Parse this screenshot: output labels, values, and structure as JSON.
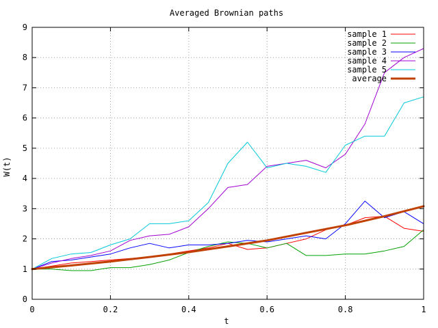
{
  "chart_data": {
    "type": "line",
    "title": "Averaged Brownian paths",
    "xlabel": "t",
    "ylabel": "W(t)",
    "xlim": [
      0,
      1
    ],
    "ylim": [
      0,
      9
    ],
    "x_ticks": [
      0,
      0.2,
      0.4,
      0.6,
      0.8,
      1
    ],
    "x_tick_labels": [
      "0",
      "0.2",
      "0.4",
      "0.6",
      "0.8",
      "1"
    ],
    "y_ticks": [
      0,
      1,
      2,
      3,
      4,
      5,
      6,
      7,
      8,
      9
    ],
    "y_tick_labels": [
      "0",
      "1",
      "2",
      "3",
      "4",
      "5",
      "6",
      "7",
      "8",
      "9"
    ],
    "grid": true,
    "legend_position": "top-right",
    "series": [
      {
        "name": "sample 1",
        "color": "#ff0000",
        "width": 1,
        "x": [
          0,
          0.05,
          0.1,
          0.15,
          0.2,
          0.25,
          0.3,
          0.35,
          0.4,
          0.45,
          0.5,
          0.55,
          0.6,
          0.65,
          0.7,
          0.75,
          0.8,
          0.85,
          0.9,
          0.95,
          1.0
        ],
        "values": [
          1.0,
          1.1,
          1.2,
          1.25,
          1.3,
          1.35,
          1.4,
          1.5,
          1.6,
          1.7,
          1.85,
          1.65,
          1.7,
          1.85,
          2.0,
          2.3,
          2.45,
          2.7,
          2.75,
          2.35,
          2.25
        ]
      },
      {
        "name": "sample 2",
        "color": "#00a000",
        "width": 1,
        "x": [
          0,
          0.05,
          0.1,
          0.15,
          0.2,
          0.25,
          0.3,
          0.35,
          0.4,
          0.45,
          0.5,
          0.55,
          0.6,
          0.65,
          0.7,
          0.75,
          0.8,
          0.85,
          0.9,
          0.95,
          1.0
        ],
        "values": [
          1.0,
          1.0,
          0.95,
          0.95,
          1.05,
          1.05,
          1.15,
          1.3,
          1.55,
          1.75,
          1.9,
          1.85,
          1.7,
          1.85,
          1.45,
          1.45,
          1.5,
          1.5,
          1.6,
          1.75,
          2.3
        ]
      },
      {
        "name": "sample 3",
        "color": "#0000ff",
        "width": 1,
        "x": [
          0,
          0.05,
          0.1,
          0.15,
          0.2,
          0.25,
          0.3,
          0.35,
          0.4,
          0.45,
          0.5,
          0.55,
          0.6,
          0.65,
          0.7,
          0.75,
          0.8,
          0.85,
          0.9,
          0.95,
          1.0
        ],
        "values": [
          1.0,
          1.25,
          1.3,
          1.4,
          1.5,
          1.7,
          1.85,
          1.7,
          1.8,
          1.8,
          1.85,
          1.95,
          1.9,
          2.0,
          2.1,
          2.0,
          2.5,
          3.25,
          2.7,
          2.9,
          2.5
        ]
      },
      {
        "name": "sample 4",
        "color": "#a000d0",
        "width": 1,
        "x": [
          0,
          0.05,
          0.1,
          0.15,
          0.2,
          0.25,
          0.3,
          0.35,
          0.4,
          0.45,
          0.5,
          0.55,
          0.6,
          0.65,
          0.7,
          0.75,
          0.8,
          0.85,
          0.9,
          0.95,
          1.0
        ],
        "values": [
          1.0,
          1.2,
          1.35,
          1.45,
          1.6,
          1.95,
          2.1,
          2.15,
          2.4,
          3.0,
          3.7,
          3.8,
          4.4,
          4.5,
          4.6,
          4.35,
          4.8,
          5.8,
          7.5,
          8.0,
          8.3
        ]
      },
      {
        "name": "sample 5",
        "color": "#00c8d8",
        "width": 1,
        "x": [
          0,
          0.05,
          0.1,
          0.15,
          0.2,
          0.25,
          0.3,
          0.35,
          0.4,
          0.45,
          0.5,
          0.55,
          0.6,
          0.65,
          0.7,
          0.75,
          0.8,
          0.85,
          0.9,
          0.95,
          1.0
        ],
        "values": [
          1.0,
          1.35,
          1.5,
          1.55,
          1.8,
          2.0,
          2.5,
          2.5,
          2.6,
          3.2,
          4.5,
          5.2,
          4.35,
          4.5,
          4.4,
          4.2,
          5.1,
          5.4,
          5.4,
          6.5,
          6.7
        ]
      },
      {
        "name": "average",
        "color": "#c04000",
        "width": 3,
        "x": [
          0,
          0.1,
          0.2,
          0.3,
          0.4,
          0.5,
          0.6,
          0.7,
          0.8,
          0.9,
          1.0
        ],
        "values": [
          1.0,
          1.12,
          1.25,
          1.4,
          1.56,
          1.75,
          1.95,
          2.2,
          2.45,
          2.75,
          3.08
        ]
      }
    ]
  }
}
